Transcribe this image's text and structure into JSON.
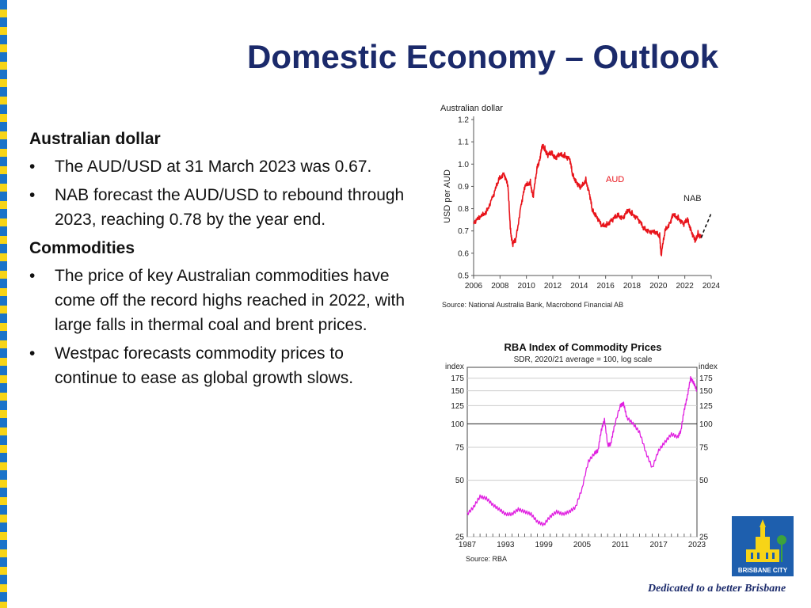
{
  "slide": {
    "title": "Domestic Economy – Outlook",
    "footer": "Dedicated to a better Brisbane",
    "logo_text": "BRISBANE CITY",
    "bullet_glyph": "•"
  },
  "sections": [
    {
      "heading": "Australian dollar",
      "bullets": [
        "The AUD/USD at 31 March 2023 was 0.67.",
        "NAB forecast the AUD/USD to rebound through 2023, reaching 0.78 by the year end."
      ]
    },
    {
      "heading": "Commodities",
      "bullets": [
        "The price of key Australian commodities have come off the record highs reached in 2022, with large falls in thermal coal and brent prices.",
        "Westpac forecasts commodity prices to continue to ease as global growth slows."
      ]
    }
  ],
  "colors": {
    "title": "#1b2a6b",
    "aud_series": "#e8141b",
    "rba_series": "#e020e0",
    "stripe_blue": "#1a73c9",
    "stripe_yellow": "#f7d417"
  },
  "chart_data": [
    {
      "type": "line",
      "title": "Australian dollar",
      "ylabel": "USD per AUD",
      "source": "Source: National Australia Bank, Macrobond Financial AB",
      "xlim": [
        2006,
        2024
      ],
      "ylim": [
        0.5,
        1.2
      ],
      "xticks": [
        "2006",
        "2008",
        "2010",
        "2012",
        "2014",
        "2016",
        "2018",
        "2020",
        "2022",
        "2024"
      ],
      "yticks": [
        "0.5",
        "0.6",
        "0.7",
        "0.8",
        "0.9",
        "1.0",
        "1.1",
        "1.2"
      ],
      "series": [
        {
          "name": "AUD",
          "x": [
            2006.0,
            2006.5,
            2007.0,
            2007.5,
            2007.9,
            2008.3,
            2008.6,
            2008.8,
            2008.95,
            2009.2,
            2009.6,
            2009.9,
            2010.3,
            2010.5,
            2010.8,
            2011.0,
            2011.2,
            2011.4,
            2011.6,
            2011.9,
            2012.2,
            2012.5,
            2012.9,
            2013.3,
            2013.5,
            2013.8,
            2014.1,
            2014.5,
            2014.8,
            2015.0,
            2015.3,
            2015.7,
            2016.1,
            2016.5,
            2016.9,
            2017.3,
            2017.7,
            2018.0,
            2018.5,
            2018.9,
            2019.3,
            2019.8,
            2020.1,
            2020.2,
            2020.5,
            2020.9,
            2021.1,
            2021.5,
            2021.9,
            2022.2,
            2022.5,
            2022.8,
            2023.0,
            2023.25
          ],
          "y": [
            0.74,
            0.76,
            0.79,
            0.86,
            0.93,
            0.96,
            0.9,
            0.7,
            0.64,
            0.66,
            0.82,
            0.9,
            0.92,
            0.85,
            0.98,
            1.02,
            1.08,
            1.07,
            1.04,
            1.05,
            1.03,
            1.04,
            1.04,
            1.02,
            0.95,
            0.92,
            0.89,
            0.93,
            0.86,
            0.79,
            0.77,
            0.72,
            0.73,
            0.75,
            0.77,
            0.76,
            0.79,
            0.78,
            0.75,
            0.71,
            0.7,
            0.69,
            0.68,
            0.59,
            0.7,
            0.74,
            0.77,
            0.76,
            0.73,
            0.75,
            0.7,
            0.65,
            0.69,
            0.67
          ]
        },
        {
          "name": "NAB",
          "x": [
            2023.25,
            2023.5,
            2023.8,
            2024.0
          ],
          "y": [
            0.67,
            0.71,
            0.75,
            0.78
          ]
        }
      ]
    },
    {
      "type": "line",
      "title": "RBA Index of Commodity Prices",
      "subtitle": "SDR, 2020/21 average = 100, log scale",
      "ylabel_left": "index",
      "ylabel_right": "index",
      "source": "Source: RBA",
      "xlim": [
        1987,
        2023
      ],
      "ylim": [
        25,
        200
      ],
      "xticks": [
        "1987",
        "1993",
        "1999",
        "2005",
        "2011",
        "2017",
        "2023"
      ],
      "yticks": [
        "25",
        "50",
        "75",
        "100",
        "125",
        "150",
        "175"
      ],
      "series": [
        {
          "name": "RBA Index",
          "x": [
            1987,
            1988,
            1989,
            1990,
            1991,
            1992,
            1993,
            1994,
            1995,
            1996,
            1997,
            1998,
            1999,
            2000,
            2001,
            2002,
            2003,
            2004,
            2005,
            2006,
            2007,
            2007.5,
            2008,
            2008.5,
            2009,
            2009.5,
            2010,
            2011,
            2011.5,
            2012,
            2013,
            2014,
            2015,
            2016,
            2017,
            2018,
            2019,
            2020,
            2020.5,
            2021,
            2021.5,
            2022,
            2022.5,
            2023
          ],
          "y": [
            33,
            36,
            41,
            40,
            37,
            35,
            33,
            33,
            35,
            34,
            33,
            30,
            29,
            32,
            34,
            33,
            34,
            36,
            45,
            63,
            70,
            72,
            92,
            105,
            77,
            78,
            95,
            125,
            128,
            108,
            100,
            90,
            70,
            58,
            72,
            80,
            88,
            85,
            92,
            118,
            140,
            175,
            165,
            150
          ]
        }
      ]
    }
  ]
}
